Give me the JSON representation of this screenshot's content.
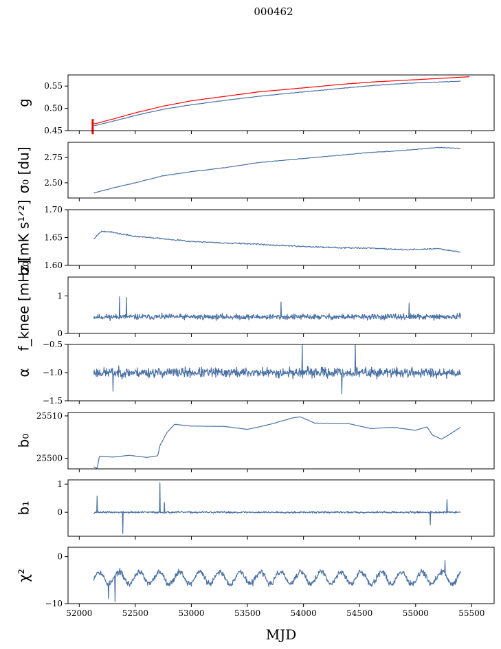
{
  "figure_title": "000462",
  "colors": {
    "series": "#4c72a4",
    "reference": "#ff0000"
  },
  "chart_data": [
    {
      "type": "line",
      "ylabel": "g",
      "xlim": [
        51900,
        55700
      ],
      "ylim": [
        0.45,
        0.575
      ],
      "yticks": [
        0.45,
        0.5,
        0.55
      ],
      "ytick_labels": [
        "0.45",
        "0.50",
        "0.55"
      ],
      "xticks": [
        52000,
        52500,
        53000,
        53500,
        54000,
        54500,
        55000,
        55500
      ],
      "xtick_labels": [],
      "series": [
        {
          "color": "#ff0000",
          "stroke": 3,
          "style": "smooth",
          "noise": 0.0004,
          "x": [
            52110,
            52150,
            52300,
            52500,
            52750,
            53000,
            53300,
            53600,
            54000,
            54300,
            54600,
            54900,
            55200,
            55480
          ],
          "y": [
            0.465,
            0.466,
            0.476,
            0.49,
            0.505,
            0.517,
            0.527,
            0.537,
            0.546,
            0.553,
            0.559,
            0.563,
            0.567,
            0.571
          ],
          "spike": {
            "x": 52120,
            "y1": 0.442,
            "y2": 0.476
          }
        },
        {
          "color": "#4c72a4",
          "stroke": 1.2,
          "style": "smooth",
          "noise": 0.0008,
          "x": [
            52120,
            52150,
            52300,
            52500,
            52750,
            53000,
            53300,
            53600,
            54000,
            54300,
            54600,
            54900,
            55200,
            55400
          ],
          "y": [
            0.46,
            0.462,
            0.471,
            0.484,
            0.498,
            0.508,
            0.518,
            0.527,
            0.537,
            0.544,
            0.551,
            0.556,
            0.559,
            0.561
          ]
        }
      ]
    },
    {
      "type": "line",
      "ylabel": "σ₀ [du]",
      "xlim": [
        51900,
        55700
      ],
      "ylim": [
        2.35,
        2.9
      ],
      "yticks": [
        2.5,
        2.75
      ],
      "ytick_labels": [
        "2.50",
        "2.75"
      ],
      "xticks": [
        52000,
        52500,
        53000,
        53500,
        54000,
        54500,
        55000,
        55500
      ],
      "xtick_labels": [],
      "series": [
        {
          "color": "#4c72a4",
          "stroke": 1.2,
          "style": "smooth",
          "noise": 0.004,
          "x": [
            52130,
            52300,
            52500,
            52750,
            53000,
            53300,
            53600,
            54000,
            54300,
            54600,
            54900,
            55200,
            55400
          ],
          "y": [
            2.4,
            2.45,
            2.5,
            2.57,
            2.61,
            2.65,
            2.7,
            2.74,
            2.77,
            2.8,
            2.82,
            2.85,
            2.84
          ]
        }
      ]
    },
    {
      "type": "line",
      "ylabel": "σ₀[mK s¹ᐟ²]",
      "xlim": [
        51900,
        55700
      ],
      "ylim": [
        1.6,
        1.7
      ],
      "yticks": [
        1.6,
        1.65,
        1.7
      ],
      "ytick_labels": [
        "1.60",
        "1.65",
        "1.70"
      ],
      "xticks": [
        52000,
        52500,
        53000,
        53500,
        54000,
        54500,
        55000,
        55500
      ],
      "xtick_labels": [],
      "series": [
        {
          "color": "#4c72a4",
          "stroke": 1.2,
          "style": "smooth",
          "noise": 0.0018,
          "x": [
            52130,
            52200,
            52300,
            52500,
            52750,
            53000,
            53300,
            53600,
            54000,
            54300,
            54600,
            54900,
            55200,
            55400
          ],
          "y": [
            1.648,
            1.662,
            1.659,
            1.652,
            1.648,
            1.643,
            1.64,
            1.638,
            1.634,
            1.632,
            1.631,
            1.628,
            1.63,
            1.624
          ]
        }
      ]
    },
    {
      "type": "line",
      "ylabel": "f_knee [mHz]",
      "xlim": [
        51900,
        55700
      ],
      "ylim": [
        0,
        1.5
      ],
      "yticks": [
        0,
        1
      ],
      "ytick_labels": [
        "0",
        "1"
      ],
      "xticks": [
        52000,
        52500,
        53000,
        53500,
        54000,
        54500,
        55000,
        55500
      ],
      "xtick_labels": [],
      "series": [
        {
          "color": "#4c72a4",
          "stroke": 1.2,
          "style": "noise",
          "x_start": 52130,
          "x_end": 55400,
          "n": 900,
          "mean": 0.44,
          "amp": 0.11,
          "seed": 11,
          "spikes": [
            [
              52360,
              0.98
            ],
            [
              52420,
              0.96
            ],
            [
              53800,
              0.84
            ],
            [
              54940,
              0.8
            ]
          ]
        }
      ]
    },
    {
      "type": "line",
      "ylabel": "α",
      "xlim": [
        51900,
        55700
      ],
      "ylim": [
        -1.5,
        -0.5
      ],
      "yticks": [
        -1.5,
        -1.0,
        -0.5
      ],
      "ytick_labels": [
        "−1.5",
        "−1.0",
        "−0.5"
      ],
      "xticks": [
        52000,
        52500,
        53000,
        53500,
        54000,
        54500,
        55000,
        55500
      ],
      "xtick_labels": [],
      "series": [
        {
          "color": "#4c72a4",
          "stroke": 1.2,
          "style": "noise",
          "x_start": 52130,
          "x_end": 55400,
          "n": 900,
          "mean": -1.0,
          "amp": 0.13,
          "seed": 23,
          "spikes": [
            [
              53990,
              -0.48
            ],
            [
              54460,
              -0.48
            ],
            [
              54340,
              -1.38
            ],
            [
              52300,
              -1.33
            ]
          ]
        }
      ]
    },
    {
      "type": "line",
      "ylabel": "b₀",
      "xlim": [
        51900,
        55700
      ],
      "ylim": [
        25497.5,
        25510.8
      ],
      "yticks": [
        25500,
        25510
      ],
      "ytick_labels": [
        "25500",
        "25510"
      ],
      "xticks": [
        52000,
        52500,
        53000,
        53500,
        54000,
        54500,
        55000,
        55500
      ],
      "xtick_labels": [],
      "series": [
        {
          "color": "#4c72a4",
          "stroke": 1.2,
          "style": "smooth",
          "noise": 0.06,
          "x": [
            52130,
            52160,
            52180,
            52300,
            52450,
            52600,
            52700,
            52720,
            52780,
            52850,
            53000,
            53300,
            53500,
            53700,
            53900,
            53970,
            54100,
            54400,
            54600,
            54800,
            55000,
            55100,
            55150,
            55230,
            55300,
            55400
          ],
          "y": [
            25498,
            25497.6,
            25500.5,
            25500.3,
            25500.7,
            25500.2,
            25500.6,
            25503,
            25506,
            25508,
            25507.6,
            25507.5,
            25506.8,
            25508,
            25509.5,
            25509.8,
            25508.3,
            25508.2,
            25507,
            25507.3,
            25506.6,
            25507.4,
            25505.5,
            25504.5,
            25505.6,
            25507.3
          ]
        }
      ]
    },
    {
      "type": "line",
      "ylabel": "b₁",
      "xlim": [
        51900,
        55700
      ],
      "ylim": [
        -0.85,
        1.15
      ],
      "yticks": [
        0,
        1
      ],
      "ytick_labels": [
        "0",
        "1"
      ],
      "xticks": [
        52000,
        52500,
        53000,
        53500,
        54000,
        54500,
        55000,
        55500
      ],
      "xtick_labels": [],
      "series": [
        {
          "color": "#4c72a4",
          "stroke": 1.2,
          "style": "noise",
          "x_start": 52130,
          "x_end": 55400,
          "n": 900,
          "mean": 0.0,
          "amp": 0.05,
          "seed": 37,
          "spikes": [
            [
              52160,
              0.58
            ],
            [
              52390,
              -0.75
            ],
            [
              52720,
              1.05
            ],
            [
              52760,
              0.35
            ],
            [
              55130,
              -0.45
            ],
            [
              55280,
              0.45
            ]
          ]
        }
      ]
    },
    {
      "type": "line",
      "ylabel": "χ²",
      "xlim": [
        51900,
        55700
      ],
      "ylim": [
        -10,
        2
      ],
      "yticks": [
        -10,
        0
      ],
      "ytick_labels": [
        "−10",
        "0"
      ],
      "xticks": [
        52000,
        52500,
        53000,
        53500,
        54000,
        54500,
        55000,
        55500
      ],
      "xtick_labels": [
        "52000",
        "52500",
        "53000",
        "53500",
        "54000",
        "54500",
        "55000",
        "55500"
      ],
      "xlabel": "MJD",
      "series": [
        {
          "color": "#4c72a4",
          "stroke": 1.2,
          "style": "wave",
          "x_start": 52130,
          "x_end": 55400,
          "n": 900,
          "mean": -4.5,
          "wave_amp": 1.3,
          "period": 180,
          "noise": 0.9,
          "seed": 53,
          "spikes": [
            [
              52320,
              -9.6
            ],
            [
              52260,
              -9.0
            ],
            [
              55260,
              -0.8
            ]
          ]
        }
      ]
    }
  ]
}
